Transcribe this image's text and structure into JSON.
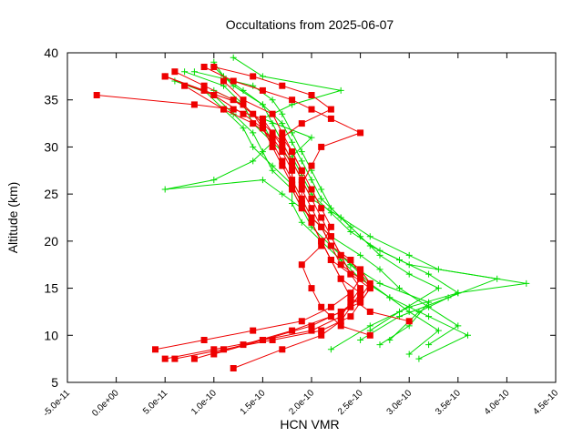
{
  "chart_data": {
    "type": "line",
    "title": "Occultations from 2025-06-07",
    "xlabel": "HCN VMR",
    "ylabel": "Altitude (km)",
    "xlim": [
      -5e-11,
      4.5e-10
    ],
    "ylim": [
      5,
      40
    ],
    "x_ticks": [
      -5e-11,
      0,
      5e-11,
      1e-10,
      1.5e-10,
      2e-10,
      2.5e-10,
      3e-10,
      3.5e-10,
      4e-10,
      4.5e-10
    ],
    "x_tick_labels": [
      "-5.0e-11",
      "0.0e+00",
      "5.0e-11",
      "1.0e-10",
      "1.5e-10",
      "2.0e-10",
      "2.5e-10",
      "3.0e-10",
      "3.5e-10",
      "4.0e-10",
      "4.5e-10"
    ],
    "y_ticks": [
      5,
      10,
      15,
      20,
      25,
      30,
      35,
      40
    ],
    "y_tick_labels": [
      "5",
      "10",
      "15",
      "20",
      "25",
      "30",
      "35",
      "40"
    ],
    "grid": false,
    "legend": "none",
    "series": [
      {
        "color": "#00dd00",
        "marker": "plus",
        "profiles": [
          {
            "x": [
              2.2e-10,
              2.6e-10,
              3e-10,
              3.5e-10,
              4.2e-10,
              3.3e-10,
              3e-10,
              2.6e-10,
              2.3e-10,
              2.1e-10,
              2e-10,
              1.9e-10,
              1.8e-10,
              1.7e-10,
              1.5e-10,
              1.2e-10,
              1e-10
            ],
            "y": [
              8.5,
              11.0,
              13.0,
              14.5,
              15.5,
              17.0,
              18.5,
              20.5,
              22.5,
              24.5,
              26.5,
              28.5,
              30.5,
              32.5,
              34.5,
              36.5,
              38.5
            ]
          },
          {
            "x": [
              2.5e-10,
              2.9e-10,
              3.4e-10,
              3.9e-10,
              3e-10,
              2.7e-10,
              2.4e-10,
              2.2e-10,
              2e-10,
              1.9e-10,
              1.8e-10,
              2e-10,
              1.5e-10,
              1.8e-10,
              2.3e-10,
              1.5e-10,
              1.2e-10
            ],
            "y": [
              9.5,
              12.0,
              14.0,
              16.0,
              17.5,
              19.0,
              21.0,
              23.0,
              25.0,
              27.0,
              29.0,
              31.0,
              33.0,
              34.5,
              36.0,
              37.5,
              39.5
            ]
          },
          {
            "x": [
              3e-10,
              3.3e-10,
              3e-10,
              2.8e-10,
              2.5e-10,
              2.3e-10,
              2.1e-10,
              1.9e-10,
              1.8e-10,
              1.8e-10,
              1.6e-10,
              1.4e-10,
              1.3e-10,
              1.1e-10,
              9e-11,
              5e-11
            ],
            "y": [
              8.0,
              10.5,
              12.5,
              14.0,
              16.0,
              18.0,
              20.0,
              22.0,
              24.0,
              26.0,
              28.0,
              30.0,
              32.0,
              34.0,
              36.0,
              37.5
            ]
          },
          {
            "x": [
              2.7e-10,
              3e-10,
              3.2e-10,
              2.7e-10,
              2.4e-10,
              2.2e-10,
              2e-10,
              1.9e-10,
              1.8e-10,
              1.6e-10,
              1.5e-10,
              1.4e-10,
              1.2e-10,
              1e-10,
              6e-11
            ],
            "y": [
              9.0,
              11.0,
              13.5,
              15.5,
              17.5,
              19.5,
              21.5,
              23.5,
              25.5,
              27.5,
              29.5,
              31.5,
              33.5,
              35.5,
              37.0
            ]
          },
          {
            "x": [
              3.1e-10,
              3.6e-10,
              3.2e-10,
              2.8e-10,
              2.6e-10,
              2.4e-10,
              2.2e-10,
              2.1e-10,
              1.9e-10,
              1.7e-10,
              1.5e-10,
              5e-11,
              1e-10,
              1.4e-10,
              1.6e-10,
              1.5e-10,
              1.3e-10,
              1.1e-10,
              7e-11
            ],
            "y": [
              7.5,
              10.0,
              12.0,
              14.0,
              15.5,
              17.5,
              19.5,
              21.5,
              23.5,
              25.0,
              26.5,
              25.5,
              26.5,
              28.5,
              30.5,
              32.5,
              34.5,
              36.5,
              38.0
            ]
          },
          {
            "x": [
              2.8e-10,
              3.1e-10,
              3.5e-10,
              3.2e-10,
              2.9e-10,
              2.6e-10,
              2.4e-10,
              2.2e-10,
              2.1e-10,
              2e-10,
              1.9e-10,
              1.8e-10,
              1.7e-10,
              1.6e-10,
              1.4e-10,
              8e-11
            ],
            "y": [
              9.5,
              12.5,
              14.5,
              16.5,
              18.0,
              19.5,
              21.5,
              23.5,
              25.5,
              27.5,
              29.5,
              31.5,
              33.5,
              35.0,
              36.5,
              38.0
            ]
          },
          {
            "x": [
              2.6e-10,
              2.9e-10,
              3.3e-10,
              3e-10,
              2.7e-10,
              2.5e-10,
              2.3e-10,
              2e-10,
              1.9e-10,
              1.8e-10,
              1.7e-10,
              1.6e-10,
              1.5e-10,
              1.3e-10,
              1.1e-10,
              1e-10
            ],
            "y": [
              10.5,
              12.5,
              15.0,
              16.5,
              18.5,
              20.5,
              22.5,
              24.5,
              26.5,
              28.5,
              30.5,
              32.5,
              34.5,
              36.0,
              37.5,
              39.0
            ]
          },
          {
            "x": [
              3.2e-10,
              3.5e-10,
              3.2e-10,
              2.9e-10,
              2.7e-10,
              2.5e-10,
              2.2e-10,
              2e-10,
              1.9e-10,
              1.8e-10,
              1.8e-10,
              1.6e-10,
              1.4e-10,
              1.3e-10,
              1e-10
            ],
            "y": [
              9.0,
              11.0,
              13.0,
              15.0,
              17.0,
              18.5,
              20.5,
              22.5,
              24.5,
              26.5,
              28.5,
              30.5,
              32.5,
              34.5,
              36.0
            ]
          }
        ]
      },
      {
        "color": "#ee0000",
        "marker": "square",
        "profiles": [
          {
            "x": [
              5e-11,
              1e-10,
              1.5e-10,
              2e-10,
              2.3e-10,
              2.4e-10,
              2.5e-10,
              2.4e-10,
              2.2e-10,
              2.1e-10,
              2e-10,
              1.9e-10,
              1.8e-10,
              1.8e-10,
              1.7e-10,
              1.6e-10,
              1.5e-10,
              1.2e-10,
              8e-11,
              -2e-11
            ],
            "y": [
              7.5,
              8.5,
              9.5,
              10.5,
              12.0,
              13.5,
              15.0,
              16.5,
              18.0,
              20.0,
              22.0,
              24.0,
              26.0,
              28.0,
              30.0,
              31.5,
              33.0,
              34.0,
              34.5,
              35.5
            ]
          },
          {
            "x": [
              4e-11,
              9e-11,
              1.4e-10,
              1.9e-10,
              2.2e-10,
              2.4e-10,
              2.5e-10,
              2.3e-10,
              2.2e-10,
              2.1e-10,
              1.9e-10,
              1.8e-10,
              1.8e-10,
              1.7e-10,
              1.6e-10,
              1.4e-10,
              1.1e-10,
              7e-11
            ],
            "y": [
              8.5,
              9.5,
              10.5,
              11.5,
              13.0,
              14.5,
              16.0,
              17.5,
              19.5,
              21.5,
              23.5,
              25.5,
              27.5,
              29.5,
              31.0,
              32.5,
              34.0,
              36.5
            ]
          },
          {
            "x": [
              6e-11,
              1.1e-10,
              1.6e-10,
              2.1e-10,
              2.4e-10,
              2.5e-10,
              2.6e-10,
              2.4e-10,
              2.3e-10,
              2.2e-10,
              2e-10,
              1.9e-10,
              1.8e-10,
              1.7e-10,
              1.6e-10,
              1.5e-10,
              1.3e-10,
              1e-10,
              5e-11
            ],
            "y": [
              7.5,
              8.5,
              9.5,
              10.5,
              12.0,
              13.5,
              15.0,
              16.5,
              18.5,
              20.5,
              22.5,
              24.5,
              26.5,
              28.5,
              30.5,
              32.0,
              33.5,
              35.5,
              37.5
            ]
          },
          {
            "x": [
              1.2e-10,
              1.7e-10,
              2.1e-10,
              2.3e-10,
              2.4e-10,
              2.5e-10,
              2.3e-10,
              2.2e-10,
              2.1e-10,
              2e-10,
              1.9e-10,
              1.8e-10,
              1.7e-10,
              1.6e-10,
              1.5e-10,
              1.4e-10,
              1.2e-10,
              9e-11,
              6e-11
            ],
            "y": [
              6.5,
              8.5,
              10.0,
              11.5,
              13.0,
              14.5,
              16.0,
              18.0,
              20.0,
              22.0,
              24.0,
              26.0,
              28.0,
              30.0,
              32.0,
              33.5,
              35.0,
              36.5,
              38.0
            ]
          },
          {
            "x": [
              8e-11,
              1.3e-10,
              1.8e-10,
              2.2e-10,
              2.5e-10,
              2.6e-10,
              2.5e-10,
              2.4e-10,
              2.2e-10,
              2.1e-10,
              2e-10,
              1.9e-10,
              1.9e-10,
              1.8e-10,
              1.7e-10,
              1.6e-10,
              1.3e-10,
              1.1e-10
            ],
            "y": [
              7.5,
              9.0,
              10.5,
              12.0,
              13.5,
              15.0,
              16.5,
              18.0,
              19.5,
              21.5,
              23.5,
              25.5,
              27.5,
              29.5,
              31.5,
              33.5,
              35.0,
              37.0
            ]
          },
          {
            "x": [
              3e-10,
              2.6e-10,
              2.4e-10,
              2.3e-10,
              2.2e-10,
              2.1e-10,
              2e-10,
              1.9e-10,
              1.9e-10,
              2e-10,
              2.1e-10,
              2.5e-10,
              2.2e-10,
              2e-10,
              1.8e-10,
              1.5e-10,
              1.2e-10,
              9e-11
            ],
            "y": [
              11.5,
              12.5,
              14.0,
              16.0,
              18.0,
              20.0,
              22.0,
              24.0,
              26.0,
              28.0,
              30.0,
              31.5,
              33.0,
              34.0,
              35.0,
              36.0,
              37.0,
              38.5
            ]
          },
          {
            "x": [
              2.6e-10,
              2.3e-10,
              2.1e-10,
              2e-10,
              1.9e-10,
              2.1e-10,
              2.2e-10,
              2.1e-10,
              2e-10,
              1.9e-10,
              1.8e-10,
              1.7e-10,
              1.9e-10,
              2.2e-10,
              2e-10,
              1.7e-10,
              1.4e-10,
              1e-10
            ],
            "y": [
              10.0,
              11.0,
              13.0,
              15.0,
              17.5,
              19.5,
              21.5,
              23.5,
              25.5,
              27.5,
              29.5,
              31.0,
              32.5,
              34.0,
              35.5,
              36.5,
              37.5,
              38.5
            ]
          },
          {
            "x": [
              1e-10,
              1.5e-10,
              2e-10,
              2.3e-10,
              2.5e-10,
              2.6e-10,
              2.5e-10,
              2.3e-10,
              2.2e-10,
              2.1e-10,
              2e-10,
              1.9e-10,
              1.8e-10,
              1.7e-10,
              1.5e-10,
              1.3e-10,
              9e-11,
              5e-11
            ],
            "y": [
              8.0,
              9.5,
              11.0,
              12.5,
              14.0,
              15.5,
              17.0,
              18.5,
              20.5,
              22.5,
              24.5,
              26.5,
              28.5,
              30.5,
              32.5,
              34.5,
              36.0,
              37.5
            ]
          }
        ]
      }
    ]
  }
}
